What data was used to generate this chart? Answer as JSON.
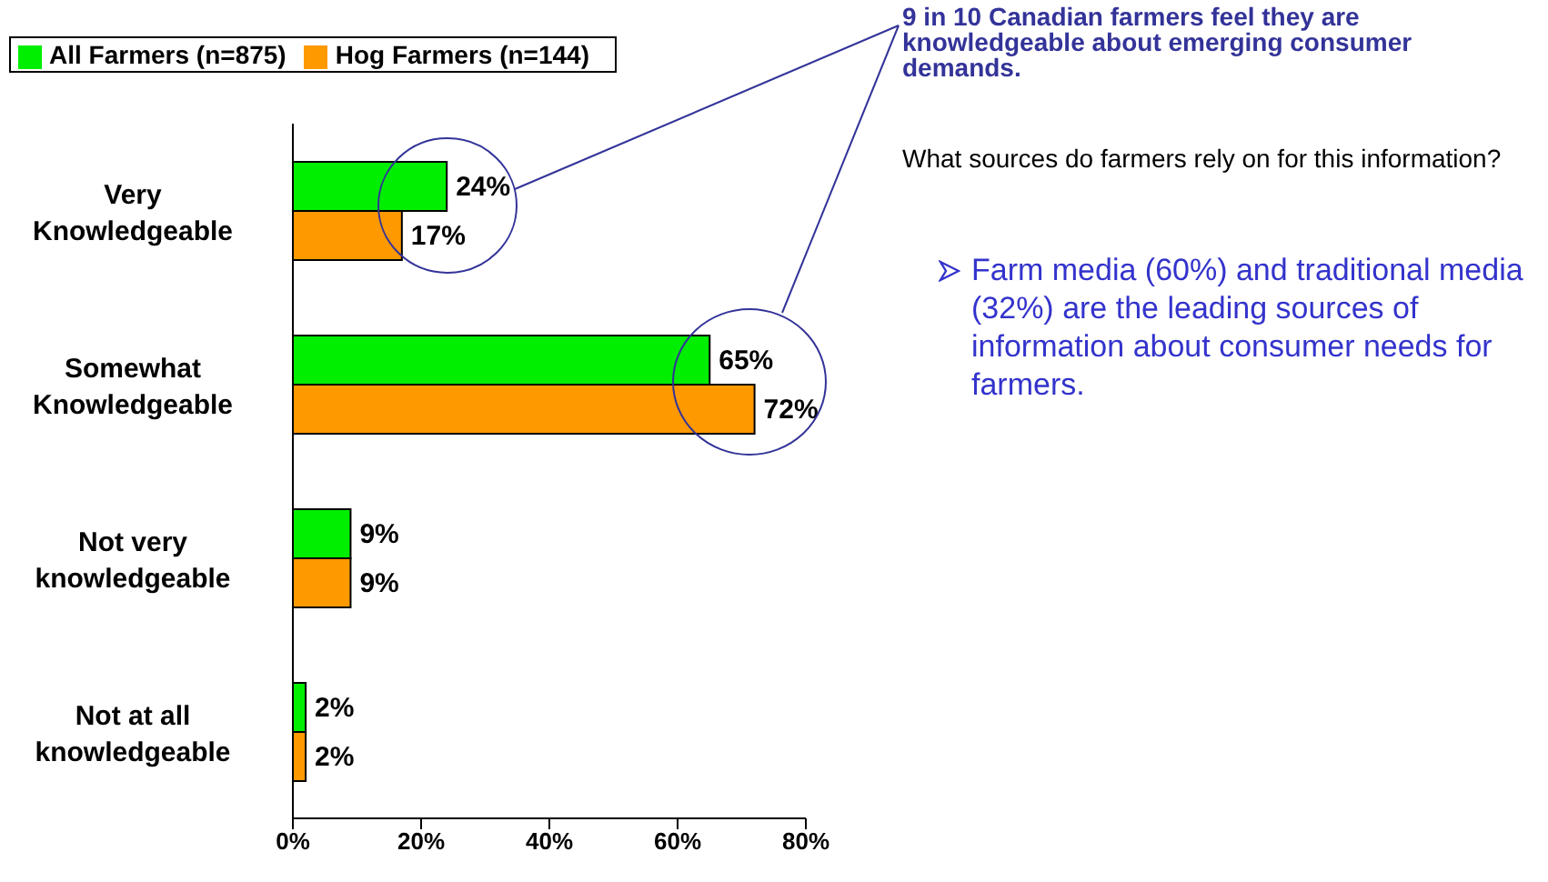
{
  "chart_data": {
    "type": "bar",
    "orientation": "horizontal",
    "title": "9 in 10 Canadian farmers feel they are knowledgeable about emerging consumer demands.",
    "subtitle": "What sources do farmers rely on for this information?",
    "annotations": [
      "Farm media (60%) and traditional media (32%) are the leading sources of information about consumer needs for farmers."
    ],
    "categories": [
      "Very Knowledgeable",
      "Somewhat Knowledgeable",
      "Not very knowledgeable",
      "Not at all knowledgeable"
    ],
    "series": [
      {
        "name": "All Farmers (n=875)",
        "color": "#00ee00",
        "values": [
          24,
          65,
          9,
          2
        ],
        "value_labels": [
          "24%",
          "65%",
          "9%",
          "2%"
        ]
      },
      {
        "name": "Hog Farmers (n=144)",
        "color": "#ff9900",
        "values": [
          17,
          72,
          9,
          2
        ],
        "value_labels": [
          "17%",
          "72%",
          "9%",
          "2%"
        ]
      }
    ],
    "xlim": [
      0,
      80
    ],
    "xticks": [
      {
        "value": 0,
        "label": "0%"
      },
      {
        "value": 20,
        "label": "20%"
      },
      {
        "value": 40,
        "label": "40%"
      },
      {
        "value": 60,
        "label": "60%"
      },
      {
        "value": 80,
        "label": "80%"
      }
    ],
    "grid": false,
    "legend": "top left"
  }
}
